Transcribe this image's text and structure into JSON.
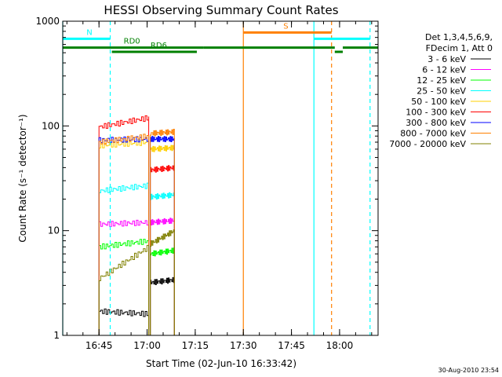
{
  "chart_data": {
    "type": "line",
    "title": "HESSI Observing Summary Count Rates",
    "xlabel": "Start Time (02-Jun-10 16:33:42)",
    "ylabel": "Count Rate (s⁻¹ detector⁻¹)",
    "yscale": "log",
    "ylim": [
      1,
      1000
    ],
    "xlim": [
      "16:33:42",
      "18:12:00"
    ],
    "x_ticks": [
      "16:45",
      "17:00",
      "17:15",
      "17:30",
      "17:45",
      "18:00"
    ],
    "y_ticks": [
      "1",
      "10",
      "100",
      "1000"
    ],
    "legend_header": [
      "Det 1,3,4,5,6,9,",
      "FDecim 1, Att 0"
    ],
    "legend_placement": "right",
    "series": [
      {
        "name": "3 - 6 keV",
        "color": "#000000",
        "segments": [
          {
            "x": [
              "16:45:00",
              "17:00:30"
            ],
            "y": [
              1.7,
              1.6
            ]
          },
          {
            "x": [
              "17:01:00",
              "17:08:30"
            ],
            "y": [
              3.2,
              3.4
            ]
          }
        ]
      },
      {
        "name": "6 - 12 keV",
        "color": "#ff00ff",
        "segments": [
          {
            "x": [
              "16:45:00",
              "17:00:30"
            ],
            "y": [
              11.5,
              12.0
            ]
          },
          {
            "x": [
              "17:01:00",
              "17:08:30"
            ],
            "y": [
              12.0,
              12.5
            ]
          }
        ]
      },
      {
        "name": "12 - 25 keV",
        "color": "#00ff00",
        "segments": [
          {
            "x": [
              "16:45:00",
              "17:00:30"
            ],
            "y": [
              7.0,
              8.0
            ]
          },
          {
            "x": [
              "17:01:00",
              "17:08:30"
            ],
            "y": [
              6.0,
              6.5
            ]
          }
        ]
      },
      {
        "name": "25 - 50 keV",
        "color": "#00ffff",
        "segments": [
          {
            "x": [
              "16:45:00",
              "17:00:30"
            ],
            "y": [
              24,
              27
            ]
          },
          {
            "x": [
              "17:01:00",
              "17:08:30"
            ],
            "y": [
              21,
              22
            ]
          }
        ]
      },
      {
        "name": "50 - 100 keV",
        "color": "#ffd000",
        "segments": [
          {
            "x": [
              "16:45:00",
              "17:00:30"
            ],
            "y": [
              65,
              70
            ]
          },
          {
            "x": [
              "17:01:00",
              "17:08:30"
            ],
            "y": [
              60,
              62
            ]
          }
        ]
      },
      {
        "name": "100 - 300 keV",
        "color": "#ff0000",
        "segments": [
          {
            "x": [
              "16:45:00",
              "17:00:30"
            ],
            "y": [
              98,
              120
            ]
          },
          {
            "x": [
              "17:01:00",
              "17:08:30"
            ],
            "y": [
              38,
              40
            ]
          }
        ]
      },
      {
        "name": "300 - 800 keV",
        "color": "#0000ff",
        "segments": [
          {
            "x": [
              "16:45:00",
              "17:00:30"
            ],
            "y": [
              73,
              75
            ]
          },
          {
            "x": [
              "17:01:00",
              "17:08:30"
            ],
            "y": [
              75,
              75
            ]
          }
        ]
      },
      {
        "name": "800 - 7000 keV",
        "color": "#ff8000",
        "segments": [
          {
            "x": [
              "16:45:00",
              "17:00:30"
            ],
            "y": [
              70,
              80
            ]
          },
          {
            "x": [
              "17:01:00",
              "17:08:30"
            ],
            "y": [
              85,
              88
            ]
          }
        ]
      },
      {
        "name": "7000 - 20000 keV",
        "color": "#808000",
        "segments": [
          {
            "x": [
              "16:45:00",
              "17:00:30"
            ],
            "y": [
              3.5,
              7.0
            ]
          },
          {
            "x": [
              "17:01:00",
              "17:08:30"
            ],
            "y": [
              7.5,
              10.0
            ]
          }
        ]
      }
    ],
    "flags": [
      {
        "label": "N",
        "color": "#00ffff",
        "y": 680,
        "segments": [
          [
            "16:33:42",
            "16:48:30"
          ],
          [
            "17:52:00",
            "18:09:30"
          ]
        ]
      },
      {
        "label": "S",
        "color": "#ff8000",
        "y": 780,
        "segments": [
          [
            "17:30:00",
            "17:57:30"
          ]
        ]
      },
      {
        "label": "RD0",
        "color": "#008000",
        "y": 560,
        "segments": [
          [
            "16:33:42",
            "17:17:30"
          ],
          [
            "17:17:30",
            "17:58:30"
          ],
          [
            "18:01:00",
            "18:12:00"
          ]
        ]
      },
      {
        "label": "RD6",
        "color": "#008000",
        "y": 510,
        "segments": [
          [
            "16:49:00",
            "17:15:30"
          ],
          [
            "17:58:30",
            "18:01:00"
          ]
        ]
      }
    ],
    "vlines": [
      {
        "x": "16:33:42",
        "color": "#00ffff",
        "style": "solid"
      },
      {
        "x": "16:48:30",
        "color": "#00ffff",
        "style": "dashed"
      },
      {
        "x": "17:30:00",
        "color": "#ff8000",
        "style": "solid"
      },
      {
        "x": "17:52:00",
        "color": "#00ffff",
        "style": "solid"
      },
      {
        "x": "17:57:30",
        "color": "#ff8000",
        "style": "dashed"
      },
      {
        "x": "18:09:30",
        "color": "#00ffff",
        "style": "dashed"
      }
    ],
    "grid": false
  },
  "footer_date": "30-Aug-2010 23:54"
}
